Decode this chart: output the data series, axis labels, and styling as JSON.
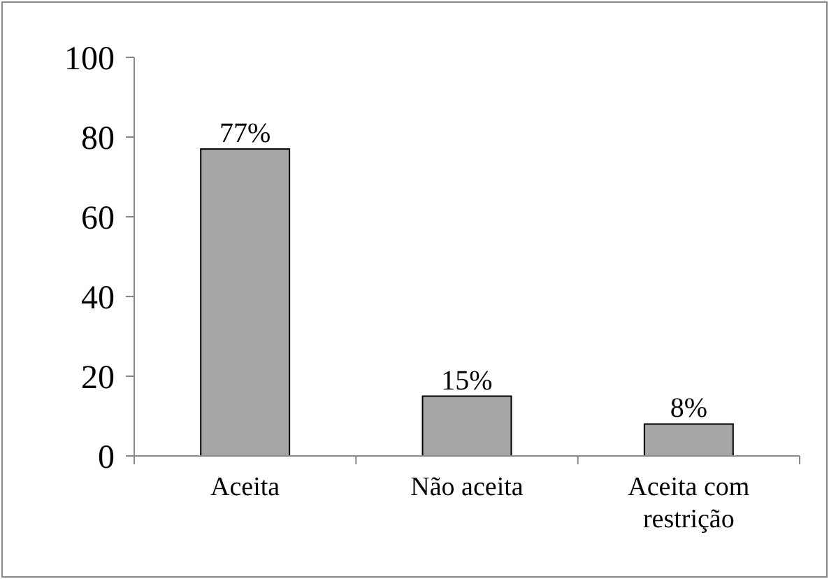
{
  "chart_data": {
    "type": "bar",
    "categories": [
      "Aceita",
      "Não aceita",
      "Aceita com restrição"
    ],
    "values": [
      77,
      15,
      8
    ],
    "color": "#a6a6a6",
    "value_labels": [
      "77%",
      "15%",
      "8%"
    ],
    "ylim": [
      0,
      100
    ],
    "yticks": [
      0,
      20,
      40,
      60,
      80,
      100
    ]
  }
}
